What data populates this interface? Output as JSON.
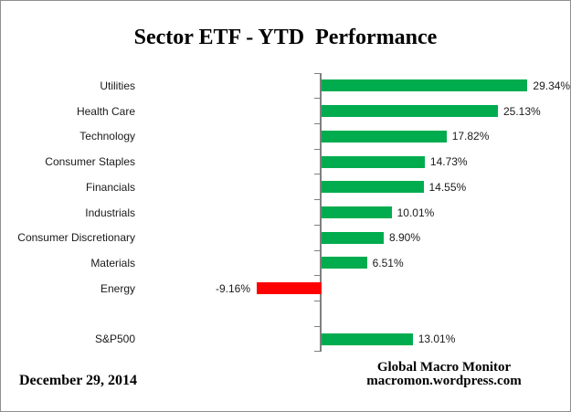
{
  "chart_data": {
    "type": "bar",
    "orientation": "horizontal",
    "title": "Sector ETF - YTD  Performance",
    "categories": [
      "Utilities",
      "Health Care",
      "Technology",
      "Consumer Staples",
      "Financials",
      "Industrials",
      "Consumer Discretionary",
      "Materials",
      "Energy",
      "",
      "S&P500"
    ],
    "values": [
      29.34,
      25.13,
      17.82,
      14.73,
      14.55,
      10.01,
      8.9,
      6.51,
      -9.16,
      null,
      13.01
    ],
    "value_labels": [
      "29.34%",
      "25.13%",
      "17.82%",
      "14.73%",
      "14.55%",
      "10.01%",
      "8.90%",
      "6.51%",
      "-9.16%",
      "",
      "13.01%"
    ],
    "xlabel": "",
    "ylabel": "",
    "xlim": [
      -12,
      34
    ],
    "grid": false,
    "legend": false,
    "colors": {
      "positive_bar": "#00AC4E",
      "negative_bar": "#FF0000",
      "axis": "#808080",
      "label_text": "#1A1A1A",
      "title_text": "#000000"
    }
  },
  "footer": {
    "date": "December 29, 2014",
    "credit_line1": "Global Macro Monitor",
    "credit_line2": "macromon.wordpress.com"
  }
}
